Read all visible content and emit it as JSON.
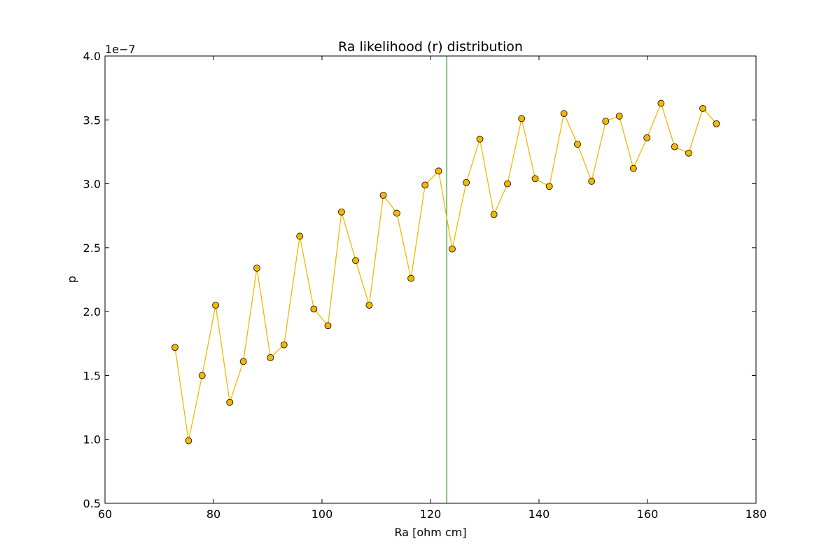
{
  "chart_data": {
    "type": "line",
    "title": "Ra likelihood (r) distribution",
    "xlabel": "Ra [ohm cm]",
    "ylabel": "p",
    "y_offset_label": "1e−7",
    "xlim": [
      60,
      180
    ],
    "ylim": [
      0.5,
      4.0
    ],
    "xticks": [
      60,
      80,
      100,
      120,
      140,
      160,
      180
    ],
    "yticks": [
      0.5,
      1.0,
      1.5,
      2.0,
      2.5,
      3.0,
      3.5,
      4.0
    ],
    "xtick_labels": [
      "60",
      "80",
      "100",
      "120",
      "140",
      "160",
      "180"
    ],
    "ytick_labels": [
      "0.5",
      "1.0",
      "1.5",
      "2.0",
      "2.5",
      "3.0",
      "3.5",
      "4.0"
    ],
    "grid": false,
    "vertical_line": {
      "x": 123,
      "color": "#2ca02c"
    },
    "series": [
      {
        "color": "#f5b800",
        "marker_color": "#f5b800",
        "x": [
          72.9,
          75.4,
          77.9,
          80.4,
          83.0,
          85.5,
          88.0,
          90.5,
          93.0,
          95.9,
          98.5,
          101.1,
          103.6,
          106.2,
          108.7,
          111.3,
          113.8,
          116.4,
          119.0,
          121.5,
          124.0,
          126.6,
          129.1,
          131.7,
          134.2,
          136.8,
          139.3,
          141.9,
          144.6,
          147.1,
          149.7,
          152.3,
          154.8,
          157.4,
          159.9,
          162.5,
          165.0,
          167.6,
          170.2,
          172.7
        ],
        "y": [
          1.72,
          0.99,
          1.5,
          2.05,
          1.29,
          1.61,
          2.34,
          1.64,
          1.74,
          2.59,
          2.02,
          1.89,
          2.78,
          2.4,
          2.05,
          2.91,
          2.77,
          2.26,
          2.99,
          3.1,
          2.49,
          3.01,
          3.35,
          2.76,
          3.0,
          3.51,
          3.04,
          2.98,
          3.55,
          3.31,
          3.02,
          3.49,
          3.53,
          3.12,
          3.36,
          3.63,
          3.29,
          3.24,
          3.59,
          3.47
        ]
      }
    ]
  }
}
